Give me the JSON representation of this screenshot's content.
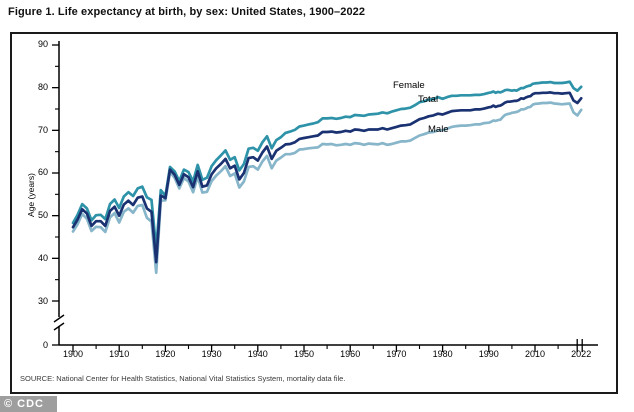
{
  "title": "Figure 1. Life expectancy at birth, by sex: United States, 1900–2022",
  "source": "SOURCE: National Center for Health Statistics, National Vital Statistics System, mortality data file.",
  "watermark": "© CDC",
  "y_axis_label": "Age (years)",
  "series_labels": {
    "female": "Female",
    "total": "Total",
    "male": "Male"
  },
  "colors": {
    "female": "#2E93A8",
    "total": "#1A3272",
    "male": "#87B5C9",
    "axis": "#000000",
    "badge_bg": "#9E9E9E",
    "badge_text": "#FFFFFF"
  },
  "chart_data": {
    "type": "line",
    "title": "Figure 1. Life expectancy at birth, by sex: United States, 1900–2022",
    "xlabel": "",
    "ylabel": "Age (years)",
    "x_start": 1900,
    "x_end": 2022,
    "x_step": 1,
    "ylim": [
      0,
      90
    ],
    "y_axis_break_between": [
      0,
      30
    ],
    "grid": false,
    "legend": "inline-labels",
    "x_tick_labels": [
      "1900",
      "1910",
      "1920",
      "1930",
      "1940",
      "1950",
      "1960",
      "1970",
      "1980",
      "1990",
      "2010",
      "2022"
    ],
    "x_anchor_years": [
      1900,
      1910,
      1920,
      1930,
      1940,
      1950,
      1960,
      1970,
      1980,
      1990,
      2010,
      2022
    ],
    "y_ticks": [
      0,
      30,
      40,
      50,
      60,
      70,
      80,
      90
    ],
    "y_minor_ticks": [
      35,
      45,
      55,
      65,
      75,
      85
    ],
    "series": [
      {
        "name": "Female",
        "color_key": "female",
        "values": [
          48.3,
          50.2,
          52.7,
          51.7,
          48.9,
          50.1,
          50.2,
          49.2,
          52.7,
          53.8,
          51.8,
          54.5,
          55.5,
          54.6,
          56.4,
          56.8,
          54.3,
          53.7,
          42.2,
          56.0,
          54.6,
          61.4,
          60.4,
          58.1,
          60.8,
          60.2,
          58.0,
          61.9,
          58.4,
          58.9,
          61.6,
          63.0,
          64.1,
          65.3,
          63.1,
          63.7,
          60.6,
          62.1,
          65.7,
          65.9,
          65.2,
          67.2,
          68.6,
          65.8,
          67.7,
          68.4,
          69.4,
          69.7,
          70.1,
          70.9,
          71.1,
          71.4,
          71.6,
          71.9,
          72.8,
          72.8,
          72.9,
          72.7,
          72.9,
          73.2,
          73.1,
          73.6,
          73.5,
          73.4,
          73.7,
          73.8,
          73.9,
          74.2,
          74.0,
          74.4,
          74.7,
          75.0,
          75.1,
          75.3,
          75.9,
          76.6,
          76.8,
          77.2,
          77.3,
          77.8,
          77.4,
          77.8,
          78.1,
          78.1,
          78.2,
          78.2,
          78.2,
          78.3,
          78.3,
          78.5,
          78.8,
          78.9,
          79.1,
          78.8,
          79.0,
          78.9,
          79.1,
          79.4,
          79.5,
          79.4,
          79.3,
          79.4,
          79.3,
          79.6,
          79.9,
          79.9,
          80.2,
          80.4,
          80.5,
          80.9,
          81.0,
          81.1,
          81.2,
          81.2,
          81.3,
          81.1,
          81.1,
          81.1,
          81.2,
          81.4,
          79.9,
          79.3,
          80.2
        ]
      },
      {
        "name": "Total",
        "color_key": "total",
        "values": [
          47.3,
          49.1,
          51.5,
          50.5,
          47.6,
          48.7,
          48.7,
          47.6,
          51.1,
          52.1,
          50.0,
          52.6,
          53.5,
          52.5,
          54.2,
          54.5,
          51.7,
          50.9,
          39.1,
          54.7,
          54.1,
          60.8,
          59.6,
          57.2,
          59.7,
          59.0,
          56.7,
          60.4,
          56.8,
          57.1,
          59.7,
          61.1,
          62.1,
          63.3,
          61.1,
          61.7,
          58.5,
          60.0,
          63.5,
          63.7,
          62.9,
          64.8,
          66.2,
          63.3,
          65.2,
          65.9,
          66.7,
          66.8,
          67.2,
          68.0,
          68.2,
          68.4,
          68.6,
          68.8,
          69.6,
          69.6,
          69.7,
          69.5,
          69.6,
          69.9,
          69.7,
          70.2,
          70.1,
          69.9,
          70.2,
          70.2,
          70.2,
          70.5,
          70.2,
          70.5,
          70.8,
          71.1,
          71.2,
          71.4,
          72.0,
          72.6,
          72.9,
          73.3,
          73.5,
          73.9,
          73.7,
          74.1,
          74.5,
          74.6,
          74.7,
          74.7,
          74.7,
          74.9,
          74.9,
          75.1,
          75.4,
          75.5,
          75.8,
          75.5,
          75.7,
          75.8,
          76.1,
          76.5,
          76.7,
          76.7,
          76.8,
          76.9,
          76.9,
          77.1,
          77.5,
          77.4,
          77.7,
          77.9,
          78.0,
          78.5,
          78.7,
          78.7,
          78.8,
          78.8,
          78.9,
          78.7,
          78.7,
          78.6,
          78.7,
          78.8,
          77.0,
          76.4,
          77.5
        ]
      },
      {
        "name": "Male",
        "color_key": "male",
        "values": [
          46.3,
          48.0,
          50.4,
          49.3,
          46.4,
          47.4,
          47.3,
          46.2,
          49.6,
          50.6,
          48.4,
          50.9,
          51.7,
          50.7,
          52.3,
          52.5,
          49.5,
          48.6,
          36.6,
          53.5,
          53.6,
          60.2,
          58.9,
          56.4,
          58.8,
          58.0,
          55.5,
          59.1,
          55.4,
          55.6,
          58.1,
          59.4,
          60.4,
          61.6,
          59.3,
          59.9,
          56.6,
          58.0,
          61.4,
          61.6,
          60.8,
          62.7,
          64.0,
          61.1,
          62.9,
          63.6,
          64.4,
          64.4,
          64.7,
          65.5,
          65.6,
          65.8,
          65.9,
          66.0,
          66.8,
          66.7,
          66.8,
          66.5,
          66.6,
          66.8,
          66.6,
          67.0,
          66.9,
          66.6,
          66.9,
          66.8,
          66.7,
          67.0,
          66.6,
          66.8,
          67.1,
          67.4,
          67.4,
          67.6,
          68.2,
          68.8,
          69.1,
          69.5,
          69.6,
          70.0,
          70.0,
          70.4,
          70.8,
          71.0,
          71.1,
          71.1,
          71.2,
          71.4,
          71.4,
          71.7,
          71.8,
          72.0,
          72.3,
          72.2,
          72.4,
          72.5,
          73.1,
          73.6,
          73.8,
          73.9,
          74.1,
          74.2,
          74.3,
          74.5,
          74.9,
          74.9,
          75.1,
          75.4,
          75.5,
          76.0,
          76.2,
          76.3,
          76.4,
          76.4,
          76.5,
          76.3,
          76.2,
          76.1,
          76.2,
          76.3,
          74.2,
          73.5,
          74.8
        ]
      }
    ]
  }
}
